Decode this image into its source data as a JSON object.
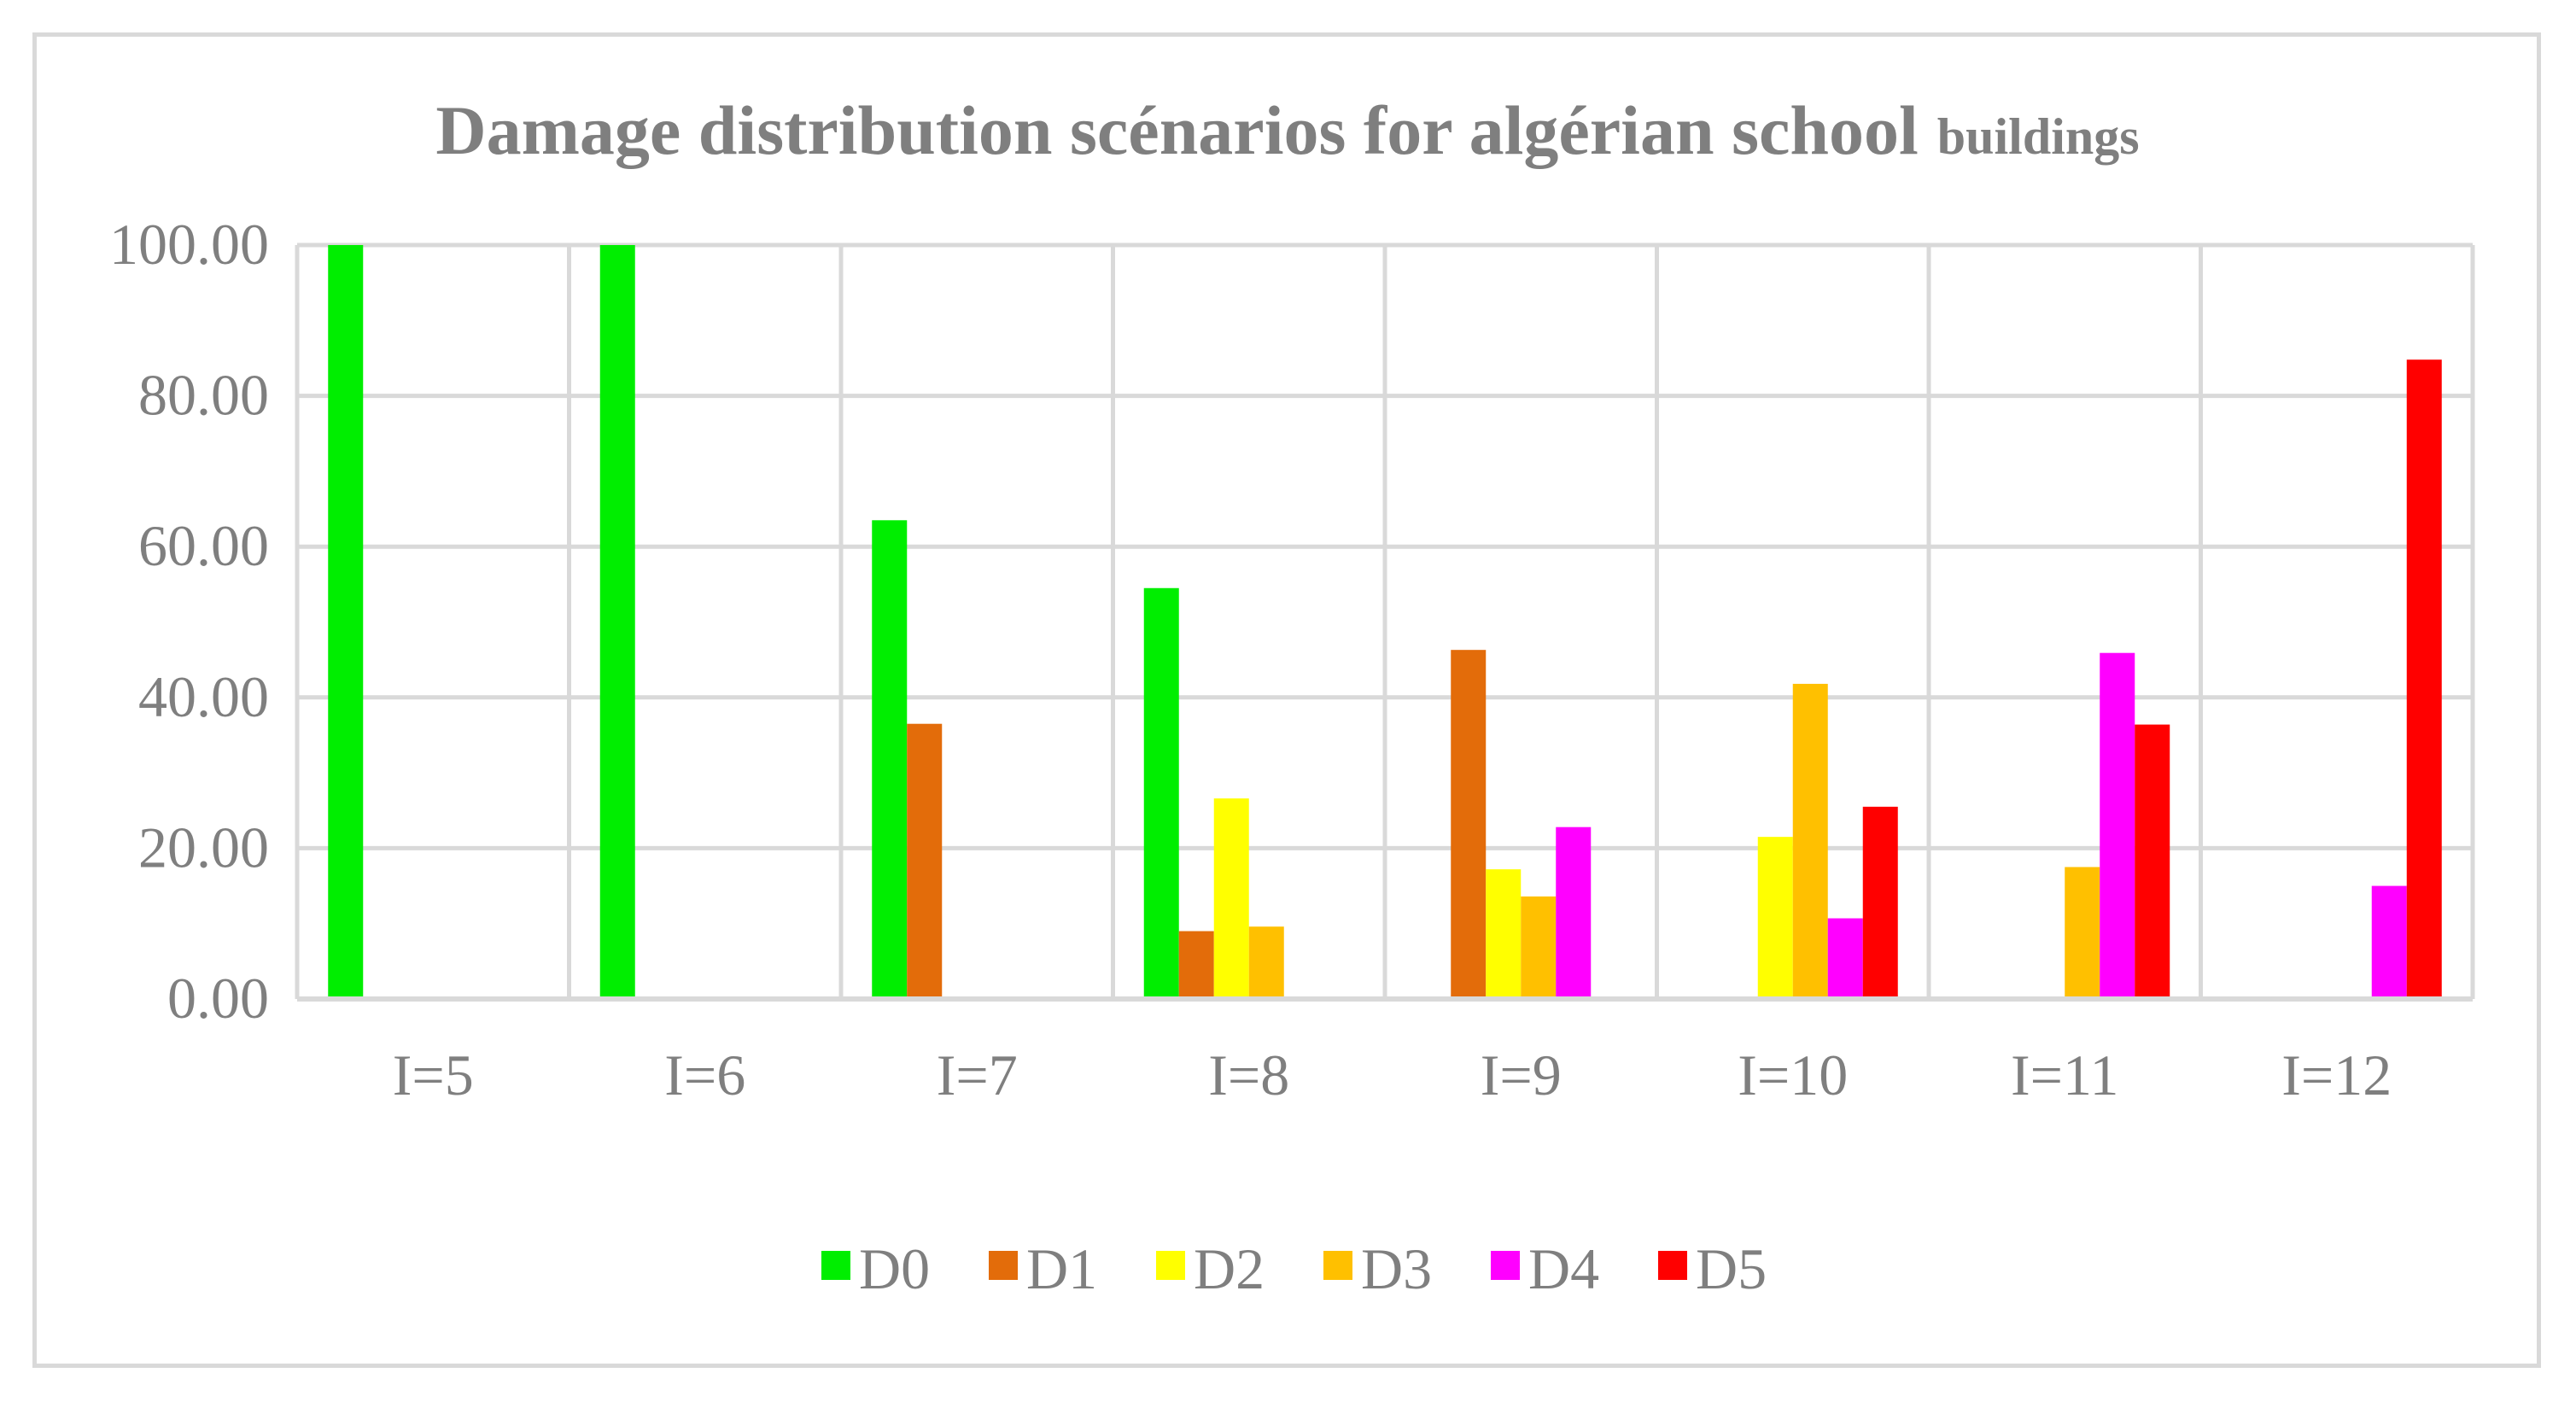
{
  "chart_data": {
    "type": "bar",
    "title_main": "Damage distribution scénarios for algérian school",
    "title_suffix": "buildings",
    "xlabel": "",
    "ylabel": "",
    "ylim": [
      0,
      100
    ],
    "yticks": [
      "0.00",
      "20.00",
      "40.00",
      "60.00",
      "80.00",
      "100.00"
    ],
    "grid": true,
    "legend_position": "bottom",
    "categories": [
      "I=5",
      "I=6",
      "I=7",
      "I=8",
      "I=9",
      "I=10",
      "I=11",
      "I=12"
    ],
    "series": [
      {
        "name": "D0",
        "color": "#00ee00",
        "values": [
          100,
          100,
          63.5,
          54.5,
          0,
          0,
          0,
          0
        ]
      },
      {
        "name": "D1",
        "color": "#e36c0a",
        "values": [
          0,
          0,
          36.5,
          9.0,
          46.3,
          0,
          0,
          0
        ]
      },
      {
        "name": "D2",
        "color": "#ffff00",
        "values": [
          0,
          0,
          0,
          26.6,
          17.2,
          21.5,
          0,
          0
        ]
      },
      {
        "name": "D3",
        "color": "#ffc000",
        "values": [
          0,
          0,
          0,
          9.6,
          13.6,
          41.8,
          17.5,
          0
        ]
      },
      {
        "name": "D4",
        "color": "#ff00ff",
        "values": [
          0,
          0,
          0,
          0,
          22.8,
          10.7,
          45.9,
          15.0
        ]
      },
      {
        "name": "D5",
        "color": "#ff0000",
        "values": [
          0,
          0,
          0,
          0,
          0,
          25.5,
          36.4,
          84.8
        ]
      }
    ]
  }
}
